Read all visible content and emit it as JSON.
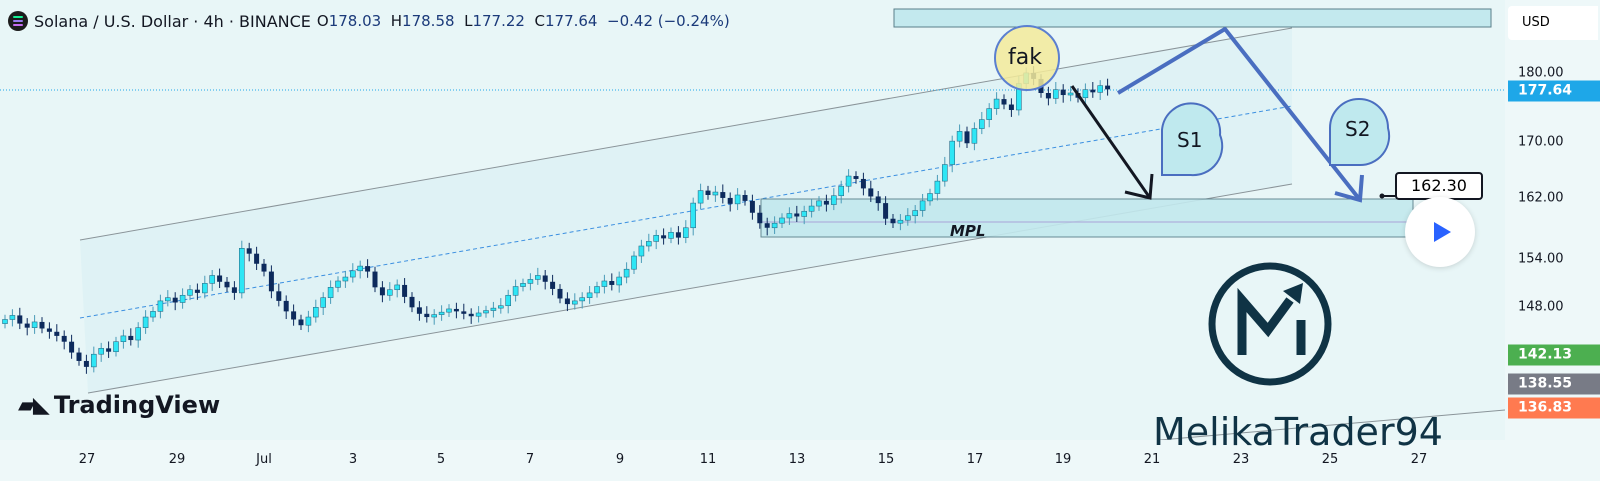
{
  "header": {
    "symbol": "Solana / U.S. Dollar · 4h · BINANCE",
    "open_label": "O",
    "open": "178.03",
    "high_label": "H",
    "high": "178.58",
    "low_label": "L",
    "low": "177.22",
    "close_label": "C",
    "close": "177.64",
    "change": "−0.42 (−0.24%)"
  },
  "currency": "USD",
  "annotations": {
    "fake": "fak",
    "s1": "S1",
    "s2": "S2",
    "mpl": "MPL",
    "target_price": "162.30"
  },
  "branding": {
    "tradingview": "TradingView",
    "author": "MelikaTrader94"
  },
  "price_tags": [
    {
      "value": "177.64",
      "color": "#1ea7e8"
    },
    {
      "value": "142.13",
      "color": "#4caf50"
    },
    {
      "value": "138.55",
      "color": "#787b86"
    },
    {
      "value": "136.83",
      "color": "#ff7a50"
    }
  ],
  "colors": {
    "up": "#2ee6f5",
    "down": "#0d2a5c",
    "projection": "#4a6ec0",
    "channel": "#8a9499"
  },
  "chart_data": {
    "type": "candlestick",
    "title": "Solana / U.S. Dollar · 4h · BINANCE",
    "y_scale": "log",
    "y_ticks": [
      "180.00",
      "170.00",
      "162.00",
      "154.00",
      "148.00"
    ],
    "x_ticks": [
      "27",
      "29",
      "Jul",
      "3",
      "5",
      "7",
      "9",
      "11",
      "13",
      "15",
      "17",
      "19",
      "21",
      "23",
      "25",
      "27"
    ],
    "first_open": 146.0,
    "closes": [
      146.5,
      147,
      146,
      145.5,
      146.2,
      145.4,
      145,
      144.5,
      143.8,
      142.5,
      141.5,
      140.8,
      142.3,
      143,
      142.6,
      143.8,
      144.5,
      144,
      145.5,
      146.8,
      147.5,
      148.8,
      149.2,
      148.6,
      149.5,
      150.2,
      149.8,
      151,
      152,
      151.2,
      150.5,
      149.8,
      155.5,
      154.8,
      153.5,
      152.5,
      150,
      148.8,
      147.5,
      146.5,
      145.8,
      146.8,
      148,
      149.2,
      150.5,
      151.3,
      151.8,
      152.6,
      153.2,
      152.5,
      150.5,
      149.5,
      150.2,
      150.8,
      149.3,
      148,
      147.2,
      146.8,
      147.1,
      147.4,
      147.8,
      147.5,
      147.2,
      146.9,
      147.3,
      147.6,
      147.9,
      148.2,
      149.5,
      150.6,
      151,
      151.5,
      152,
      151.2,
      150.3,
      149.1,
      148.4,
      148.8,
      149.2,
      149.8,
      150.6,
      151.3,
      150.8,
      151.8,
      152.8,
      154.5,
      155.8,
      156.4,
      157.2,
      156.8,
      157.6,
      156.9,
      158.2,
      161.5,
      163.2,
      162.6,
      163,
      162.2,
      161.4,
      162.6,
      161.8,
      160.2,
      158.8,
      158.2,
      158.8,
      159.5,
      160.1,
      159.7,
      160.4,
      161.1,
      161.8,
      161.3,
      162.5,
      163.8,
      165.2,
      164.8,
      163.5,
      162.4,
      161.5,
      159.4,
      158.8,
      159.2,
      159.8,
      160.5,
      161.8,
      162.8,
      164.5,
      166.8,
      170.1,
      171.5,
      169.8,
      171.9,
      173.2,
      174.8,
      176.2,
      175.4,
      174.6,
      178.5,
      180.1,
      179.2,
      177.1,
      176.3,
      177.6,
      176.8,
      177.1,
      176.4,
      177.6,
      177.2,
      178.2,
      177.64
    ],
    "last_price": 177.64
  }
}
